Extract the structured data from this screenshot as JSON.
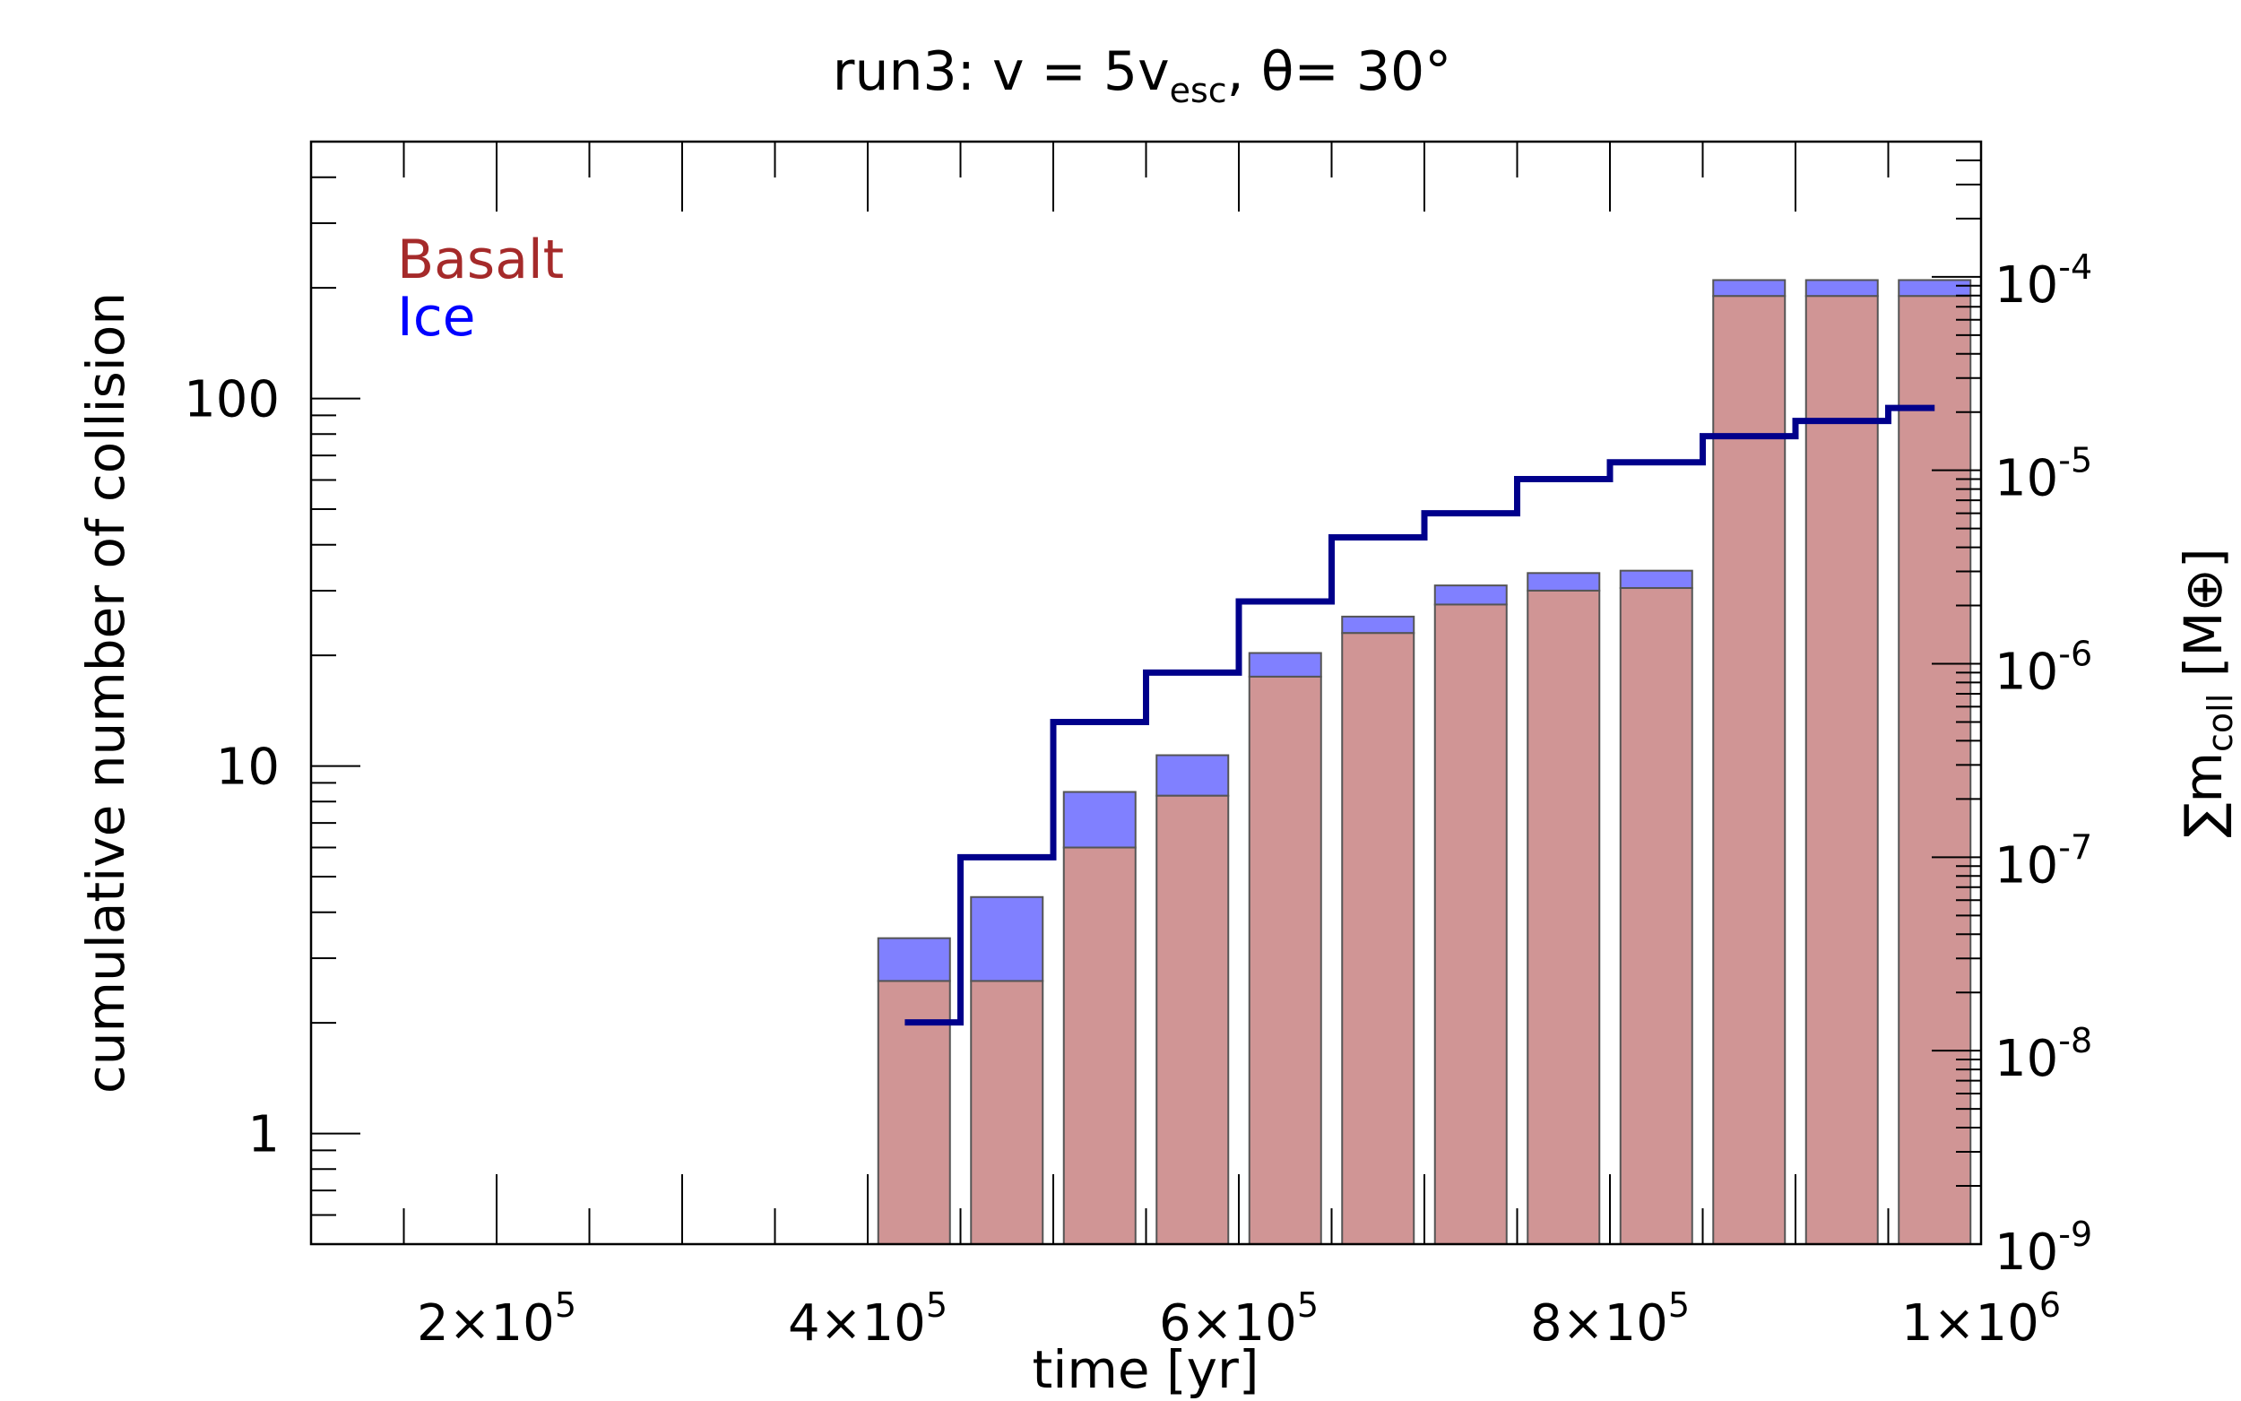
{
  "chart_data": {
    "type": "bar",
    "title": {
      "main": "run3: v = 5v",
      "sub": "esc",
      "rest": ", θ= 30°"
    },
    "xlabel": "time [yr]",
    "ylabel": "cumulative number of collision",
    "y2label": {
      "sym": "∑m",
      "sub": "coll",
      "rest": " [M⊕]"
    },
    "xlim": [
      100000,
      1000000
    ],
    "ylim": [
      0.5,
      500
    ],
    "y2lim": [
      1e-09,
      0.0005
    ],
    "yscale": "log",
    "y2scale": "log",
    "x_ticks": [
      {
        "value": 200000,
        "mant": "2×10",
        "exp": "5"
      },
      {
        "value": 400000,
        "mant": "4×10",
        "exp": "5"
      },
      {
        "value": 600000,
        "mant": "6×10",
        "exp": "5"
      },
      {
        "value": 800000,
        "mant": "8×10",
        "exp": "5"
      },
      {
        "value": 1000000,
        "mant": "1×10",
        "exp": "6"
      }
    ],
    "y_ticks": [
      {
        "value": 1,
        "label": "1"
      },
      {
        "value": 10,
        "label": "10"
      },
      {
        "value": 100,
        "label": "100"
      }
    ],
    "y2_ticks": [
      {
        "value": 1e-09,
        "mant": "10",
        "exp": "-9"
      },
      {
        "value": 1e-08,
        "mant": "10",
        "exp": "-8"
      },
      {
        "value": 1e-07,
        "mant": "10",
        "exp": "-7"
      },
      {
        "value": 1e-06,
        "mant": "10",
        "exp": "-6"
      },
      {
        "value": 1e-05,
        "mant": "10",
        "exp": "-5"
      },
      {
        "value": 0.0001,
        "mant": "10",
        "exp": "-4"
      }
    ],
    "legend": {
      "placement": "top-left",
      "items": [
        {
          "name": "Basalt",
          "color": "#a52a2a"
        },
        {
          "name": "Ice",
          "color": "#0000ff"
        }
      ]
    },
    "colors": {
      "basalt_fill": "#d09595",
      "ice_fill": "#8080ff",
      "bar_edge": "#555555",
      "line": "#00008b",
      "line_overlap": "#4b1850"
    },
    "bins": [
      {
        "start": 400000,
        "end": 450000,
        "basalt": 2.6,
        "total": 3.4
      },
      {
        "start": 450000,
        "end": 500000,
        "basalt": 2.6,
        "total": 4.4
      },
      {
        "start": 500000,
        "end": 550000,
        "basalt": 6.0,
        "total": 8.5
      },
      {
        "start": 550000,
        "end": 600000,
        "basalt": 8.3,
        "total": 10.7
      },
      {
        "start": 600000,
        "end": 650000,
        "basalt": 17.5,
        "total": 20.3
      },
      {
        "start": 650000,
        "end": 700000,
        "basalt": 23.0,
        "total": 25.5
      },
      {
        "start": 700000,
        "end": 750000,
        "basalt": 27.5,
        "total": 31.0
      },
      {
        "start": 750000,
        "end": 800000,
        "basalt": 30.0,
        "total": 33.5
      },
      {
        "start": 800000,
        "end": 850000,
        "basalt": 30.5,
        "total": 34.0
      },
      {
        "start": 850000,
        "end": 900000,
        "basalt": 190,
        "total": 210
      },
      {
        "start": 900000,
        "end": 950000,
        "basalt": 190,
        "total": 210
      },
      {
        "start": 950000,
        "end": 1000000,
        "basalt": 190,
        "total": 210
      }
    ],
    "mass_line": {
      "name": "∑m coll",
      "steps": [
        {
          "x": 420000,
          "y": 1.4e-08
        },
        {
          "x": 450000,
          "y": 1e-07
        },
        {
          "x": 500000,
          "y": 5e-07
        },
        {
          "x": 550000,
          "y": 9e-07
        },
        {
          "x": 600000,
          "y": 2.1e-06
        },
        {
          "x": 650000,
          "y": 4.5e-06
        },
        {
          "x": 700000,
          "y": 6e-06
        },
        {
          "x": 750000,
          "y": 9e-06
        },
        {
          "x": 800000,
          "y": 1.1e-05
        },
        {
          "x": 850000,
          "y": 1.5e-05
        },
        {
          "x": 900000,
          "y": 1.8e-05
        },
        {
          "x": 950000,
          "y": 2.1e-05
        }
      ],
      "end_x": 975000
    }
  }
}
